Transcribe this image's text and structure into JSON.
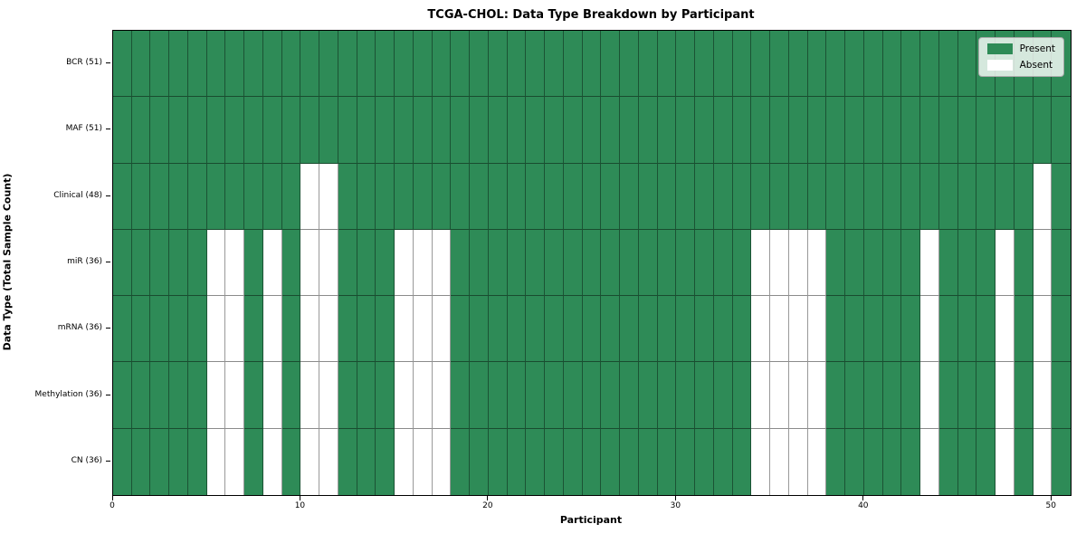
{
  "chart_data": {
    "type": "heatmap",
    "title": "TCGA-CHOL: Data Type Breakdown by Participant",
    "xlabel": "Participant",
    "ylabel": "Data Type (Total Sample Count)",
    "n_participants": 51,
    "x_ticks": [
      0,
      10,
      20,
      30,
      40,
      50
    ],
    "grid": true,
    "legend_position": "upper right",
    "colors": {
      "present": "#2e8b57",
      "absent": "#ffffff",
      "grid_line": "rgba(0,0,0,0.4)"
    },
    "legend": [
      {
        "label": "Present",
        "color": "#2e8b57"
      },
      {
        "label": "Absent",
        "color": "#ffffff"
      }
    ],
    "rows": [
      {
        "label": "BCR (51)",
        "total": 51,
        "absent_participants": []
      },
      {
        "label": "MAF (51)",
        "total": 51,
        "absent_participants": []
      },
      {
        "label": "Clinical (48)",
        "total": 48,
        "absent_participants": [
          10,
          11,
          49
        ]
      },
      {
        "label": "miR (36)",
        "total": 36,
        "absent_participants": [
          5,
          6,
          8,
          10,
          11,
          15,
          16,
          17,
          34,
          35,
          36,
          37,
          43,
          47,
          49
        ]
      },
      {
        "label": "mRNA (36)",
        "total": 36,
        "absent_participants": [
          5,
          6,
          8,
          10,
          11,
          15,
          16,
          17,
          34,
          35,
          36,
          37,
          43,
          47,
          49
        ]
      },
      {
        "label": "Methylation (36)",
        "total": 36,
        "absent_participants": [
          5,
          6,
          8,
          10,
          11,
          15,
          16,
          17,
          34,
          35,
          36,
          37,
          43,
          47,
          49
        ]
      },
      {
        "label": "CN (36)",
        "total": 36,
        "absent_participants": [
          5,
          6,
          8,
          10,
          11,
          15,
          16,
          17,
          34,
          35,
          36,
          37,
          43,
          47,
          49
        ]
      }
    ]
  }
}
